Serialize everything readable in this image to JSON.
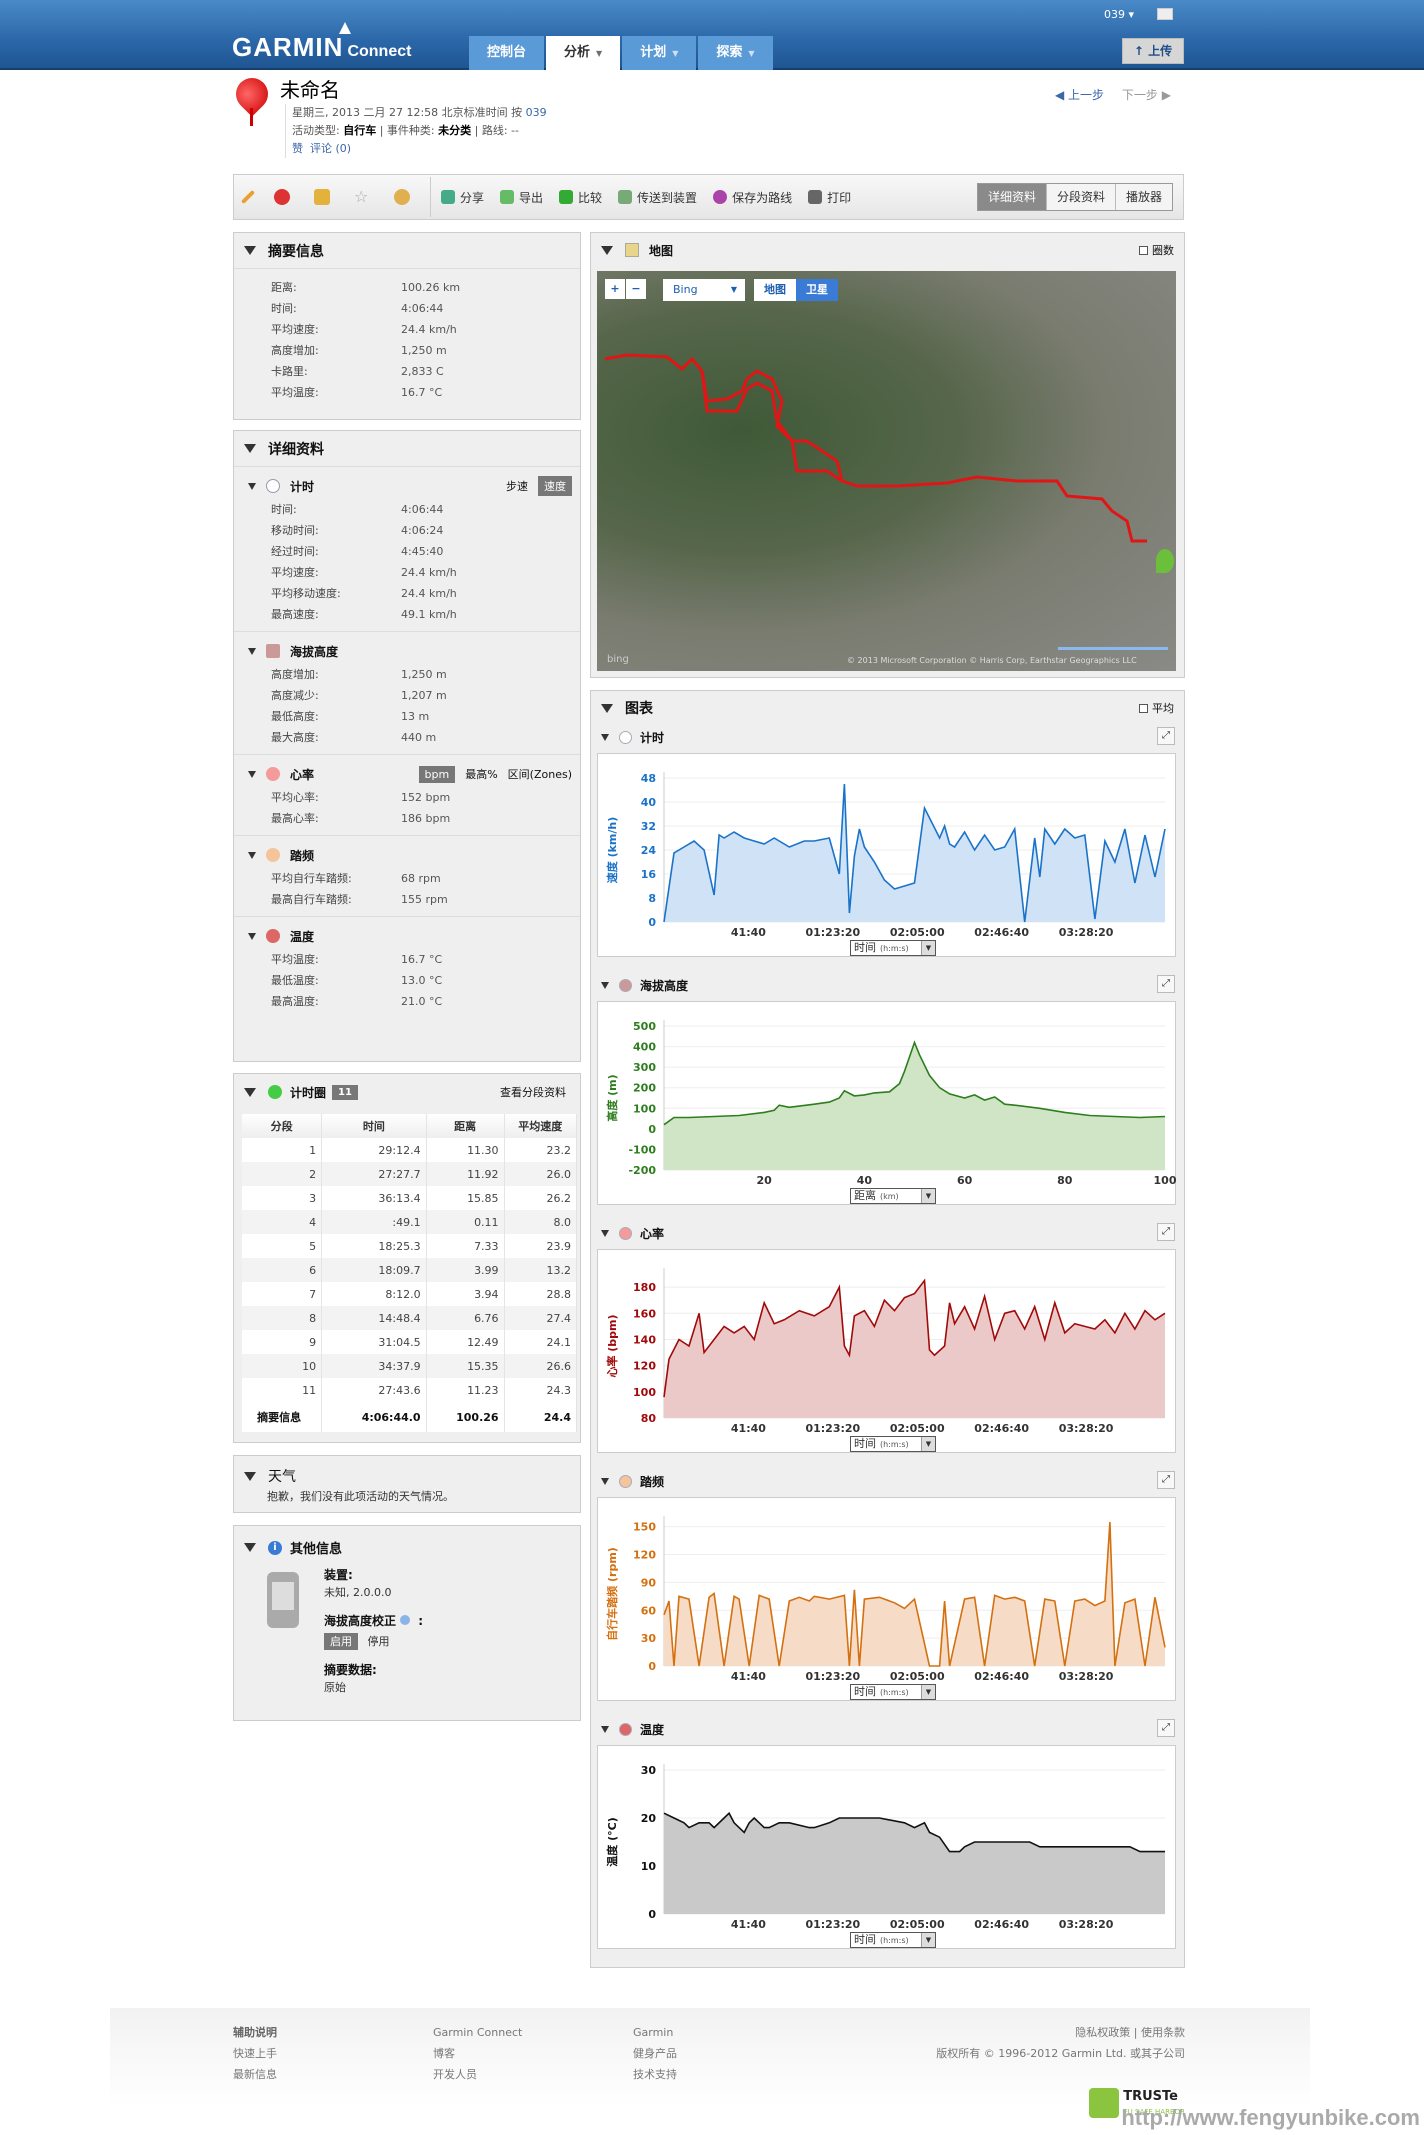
{
  "header": {
    "logo_main": "GARMIN",
    "logo_sub": "Connect",
    "nav": [
      {
        "label": "控制台",
        "dropdown": false,
        "active": false
      },
      {
        "label": "分析",
        "dropdown": true,
        "active": true
      },
      {
        "label": "计划",
        "dropdown": true,
        "active": false
      },
      {
        "label": "探索",
        "dropdown": true,
        "active": false
      }
    ],
    "user": "039 ▾",
    "upload_label": "上传"
  },
  "activity": {
    "title": "未命名",
    "datetime": "星期三, 2013 二月 27 12:58 北京标准时间 按",
    "owner": "039",
    "type_label": "活动类型:",
    "type_value": "自行车",
    "event_label": "| 事件种类:",
    "event_value": "未分类",
    "route_label": "| 路线: --",
    "like": "赞",
    "comment": "评论 (0)",
    "prev": "上一步",
    "next": "下一步"
  },
  "toolbar": {
    "icons": [
      "edit-icon",
      "delete-icon",
      "privacy-icon",
      "favorite-icon",
      "badge-icon"
    ],
    "buttons": [
      "分享",
      "导出",
      "比较",
      "传送到装置",
      "保存为路线",
      "打印"
    ],
    "views": [
      "详细资料",
      "分段资料",
      "播放器"
    ],
    "active_view": 0
  },
  "summary": {
    "title": "摘要信息",
    "rows": [
      {
        "k": "距离:",
        "v": "100.26 km"
      },
      {
        "k": "时间:",
        "v": "4:06:44"
      },
      {
        "k": "平均速度:",
        "v": "24.4 km/h"
      },
      {
        "k": "高度增加:",
        "v": "1,250 m"
      },
      {
        "k": "卡路里:",
        "v": "2,833 C"
      },
      {
        "k": "平均温度:",
        "v": "16.7 °C"
      }
    ]
  },
  "details": {
    "title": "详细资料",
    "timing": {
      "title": "计时",
      "opt1": "步速",
      "opt2": "速度",
      "rows": [
        {
          "k": "时间:",
          "v": "4:06:44"
        },
        {
          "k": "移动时间:",
          "v": "4:06:24"
        },
        {
          "k": "经过时间:",
          "v": "4:45:40"
        },
        {
          "k": "平均速度:",
          "v": "24.4 km/h"
        },
        {
          "k": "平均移动速度:",
          "v": "24.4 km/h"
        },
        {
          "k": "最高速度:",
          "v": "49.1 km/h"
        }
      ]
    },
    "elevation": {
      "title": "海拔高度",
      "rows": [
        {
          "k": "高度增加:",
          "v": "1,250 m"
        },
        {
          "k": "高度减少:",
          "v": "1,207 m"
        },
        {
          "k": "最低高度:",
          "v": "13 m"
        },
        {
          "k": "最大高度:",
          "v": "440 m"
        }
      ]
    },
    "heart": {
      "title": "心率",
      "opt1": "bpm",
      "opt2": "最高%",
      "opt3": "区间(Zones)",
      "rows": [
        {
          "k": "平均心率:",
          "v": "152 bpm"
        },
        {
          "k": "最高心率:",
          "v": "186 bpm"
        }
      ]
    },
    "cadence": {
      "title": "踏频",
      "rows": [
        {
          "k": "平均自行车踏频:",
          "v": "68 rpm"
        },
        {
          "k": "最高自行车踏频:",
          "v": "155 rpm"
        }
      ]
    },
    "temperature": {
      "title": "温度",
      "rows": [
        {
          "k": "平均温度:",
          "v": "16.7 °C"
        },
        {
          "k": "最低温度:",
          "v": "13.0 °C"
        },
        {
          "k": "最高温度:",
          "v": "21.0 °C"
        }
      ]
    }
  },
  "laps": {
    "title": "计时圈",
    "count": "11",
    "link": "查看分段资料",
    "headers": [
      "分段",
      "时间",
      "距离",
      "平均速度"
    ],
    "rows": [
      [
        "1",
        "29:12.4",
        "11.30",
        "23.2"
      ],
      [
        "2",
        "27:27.7",
        "11.92",
        "26.0"
      ],
      [
        "3",
        "36:13.4",
        "15.85",
        "26.2"
      ],
      [
        "4",
        ":49.1",
        "0.11",
        "8.0"
      ],
      [
        "5",
        "18:25.3",
        "7.33",
        "23.9"
      ],
      [
        "6",
        "18:09.7",
        "3.99",
        "13.2"
      ],
      [
        "7",
        "8:12.0",
        "3.94",
        "28.8"
      ],
      [
        "8",
        "14:48.4",
        "6.76",
        "27.4"
      ],
      [
        "9",
        "31:04.5",
        "12.49",
        "24.1"
      ],
      [
        "10",
        "34:37.9",
        "15.35",
        "26.6"
      ],
      [
        "11",
        "27:43.6",
        "11.23",
        "24.3"
      ]
    ],
    "total": [
      "摘要信息",
      "4:06:44.0",
      "100.26",
      "24.4"
    ]
  },
  "weather": {
    "title": "天气",
    "message": "抱歉，我们没有此项活动的天气情况。"
  },
  "other": {
    "title": "其他信息",
    "device_label": "装置:",
    "device_value": "未知, 2.0.0.0",
    "elev_corr_label": "海拔高度校正",
    "elev_corr_suffix": ":",
    "enable": "启用",
    "disable": "停用",
    "summary_label": "摘要数据:",
    "summary_value": "原始"
  },
  "map": {
    "title": "地图",
    "laps_checkbox": "圈数",
    "provider": "Bing",
    "mode_map": "地图",
    "mode_sat": "卫星",
    "copyright": "© 2013 Microsoft Corporation   © Harris Corp, Earthstar Geographics LLC",
    "bing": "bing",
    "scale_mi": "3 miles",
    "scale_km": "2 km"
  },
  "charts_panel": {
    "title": "图表",
    "avg_checkbox": "平均"
  },
  "chart_data": [
    {
      "type": "area",
      "title": "计时",
      "ylabel": "速度 (km/h)",
      "xlabel": "时间 (h:m:s)",
      "color": "#1a73c9",
      "fill": "#cfe2f6",
      "ylim": [
        0,
        48
      ],
      "yticks": [
        0,
        8,
        16,
        24,
        32,
        40,
        48
      ],
      "xticks": [
        "41:40",
        "01:23:20",
        "02:05:00",
        "02:46:40",
        "03:28:20"
      ],
      "x": [
        0,
        0.02,
        0.04,
        0.06,
        0.08,
        0.1,
        0.11,
        0.12,
        0.14,
        0.16,
        0.18,
        0.2,
        0.22,
        0.25,
        0.28,
        0.3,
        0.33,
        0.35,
        0.36,
        0.37,
        0.38,
        0.39,
        0.4,
        0.42,
        0.44,
        0.46,
        0.48,
        0.5,
        0.52,
        0.55,
        0.56,
        0.57,
        0.58,
        0.6,
        0.62,
        0.64,
        0.66,
        0.68,
        0.7,
        0.72,
        0.74,
        0.75,
        0.76,
        0.78,
        0.8,
        0.82,
        0.84,
        0.86,
        0.88,
        0.9,
        0.92,
        0.94,
        0.96,
        0.98,
        1.0
      ],
      "values": [
        0,
        23,
        25,
        27,
        24,
        9,
        29,
        28,
        30,
        28,
        27,
        26,
        28,
        25,
        27,
        27,
        28,
        16,
        46,
        3,
        22,
        31,
        25,
        20,
        14,
        11,
        12,
        13,
        38,
        28,
        32,
        26,
        25,
        30,
        24,
        29,
        24,
        25,
        31,
        0,
        28,
        15,
        31,
        26,
        31,
        28,
        29,
        1,
        27,
        20,
        31,
        13,
        29,
        15,
        31
      ]
    },
    {
      "type": "area",
      "title": "海拔高度",
      "ylabel": "高度 (m)",
      "xlabel": "距离 (km)",
      "color": "#2e7d1e",
      "fill": "#cfe5c6",
      "ylim": [
        -200,
        500
      ],
      "yticks": [
        -200,
        -100,
        0,
        100,
        200,
        300,
        400,
        500
      ],
      "xticks": [
        "20",
        "40",
        "60",
        "80",
        "100"
      ],
      "x": [
        0,
        2,
        5,
        10,
        15,
        20,
        22,
        23,
        25,
        30,
        33,
        35,
        36,
        38,
        40,
        42,
        45,
        47,
        48,
        50,
        51,
        53,
        55,
        57,
        60,
        62,
        64,
        66,
        68,
        70,
        75,
        80,
        85,
        90,
        95,
        100
      ],
      "values": [
        20,
        55,
        55,
        60,
        65,
        80,
        90,
        115,
        105,
        120,
        130,
        150,
        185,
        160,
        165,
        175,
        180,
        220,
        280,
        420,
        360,
        260,
        200,
        170,
        150,
        165,
        140,
        155,
        120,
        115,
        100,
        80,
        65,
        60,
        55,
        60
      ]
    },
    {
      "type": "area",
      "title": "心率",
      "ylabel": "心率 (bpm)",
      "xlabel": "时间 (h:m:s)",
      "color": "#a10a0a",
      "fill": "#ecc9c9",
      "ylim": [
        80,
        190
      ],
      "yticks": [
        80,
        100,
        120,
        140,
        160,
        180
      ],
      "xticks": [
        "41:40",
        "01:23:20",
        "02:05:00",
        "02:46:40",
        "03:28:20"
      ],
      "x": [
        0,
        0.01,
        0.03,
        0.05,
        0.07,
        0.08,
        0.1,
        0.12,
        0.14,
        0.16,
        0.18,
        0.2,
        0.22,
        0.24,
        0.27,
        0.3,
        0.33,
        0.35,
        0.36,
        0.37,
        0.38,
        0.4,
        0.42,
        0.44,
        0.46,
        0.48,
        0.5,
        0.52,
        0.53,
        0.54,
        0.56,
        0.57,
        0.58,
        0.6,
        0.62,
        0.64,
        0.66,
        0.68,
        0.7,
        0.72,
        0.74,
        0.76,
        0.78,
        0.8,
        0.82,
        0.84,
        0.86,
        0.88,
        0.9,
        0.92,
        0.94,
        0.96,
        0.98,
        1.0
      ],
      "values": [
        96,
        125,
        140,
        135,
        160,
        130,
        140,
        150,
        145,
        150,
        140,
        168,
        152,
        155,
        162,
        158,
        165,
        180,
        135,
        128,
        158,
        162,
        150,
        170,
        162,
        172,
        175,
        185,
        132,
        128,
        135,
        168,
        152,
        165,
        148,
        173,
        140,
        160,
        162,
        148,
        165,
        140,
        168,
        145,
        152,
        150,
        148,
        155,
        145,
        160,
        148,
        162,
        155,
        160
      ]
    },
    {
      "type": "area",
      "title": "踏频",
      "ylabel": "自行车踏频 (rpm)",
      "xlabel": "时间 (h:m:s)",
      "color": "#d4700f",
      "fill": "#f6dcc6",
      "ylim": [
        0,
        155
      ],
      "yticks": [
        0,
        30,
        60,
        90,
        120,
        150
      ],
      "xticks": [
        "41:40",
        "01:23:20",
        "02:05:00",
        "02:46:40",
        "03:28:20"
      ],
      "x": [
        0,
        0.01,
        0.02,
        0.03,
        0.05,
        0.07,
        0.09,
        0.1,
        0.12,
        0.14,
        0.15,
        0.17,
        0.19,
        0.21,
        0.23,
        0.25,
        0.27,
        0.29,
        0.3,
        0.33,
        0.36,
        0.37,
        0.38,
        0.39,
        0.4,
        0.43,
        0.46,
        0.48,
        0.5,
        0.53,
        0.55,
        0.56,
        0.57,
        0.6,
        0.62,
        0.64,
        0.66,
        0.68,
        0.7,
        0.72,
        0.74,
        0.76,
        0.78,
        0.8,
        0.82,
        0.84,
        0.86,
        0.88,
        0.89,
        0.9,
        0.92,
        0.94,
        0.96,
        0.98,
        1.0
      ],
      "values": [
        55,
        70,
        0,
        75,
        72,
        0,
        74,
        78,
        0,
        75,
        72,
        0,
        76,
        72,
        0,
        70,
        74,
        70,
        75,
        72,
        76,
        0,
        82,
        0,
        72,
        74,
        68,
        62,
        72,
        0,
        0,
        70,
        0,
        72,
        74,
        0,
        76,
        72,
        74,
        70,
        0,
        72,
        70,
        0,
        70,
        72,
        65,
        70,
        155,
        0,
        68,
        72,
        0,
        74,
        20
      ]
    },
    {
      "type": "area",
      "title": "温度",
      "ylabel": "温度 (°C)",
      "xlabel": "时间 (h:m:s)",
      "color": "#111111",
      "fill": "#c9c9c9",
      "ylim": [
        0,
        30
      ],
      "yticks": [
        0,
        10,
        20,
        30
      ],
      "xticks": [
        "41:40",
        "01:23:20",
        "02:05:00",
        "02:46:40",
        "03:28:20"
      ],
      "x": [
        0,
        0.02,
        0.04,
        0.05,
        0.07,
        0.09,
        0.1,
        0.12,
        0.13,
        0.14,
        0.16,
        0.17,
        0.18,
        0.2,
        0.21,
        0.23,
        0.25,
        0.29,
        0.3,
        0.33,
        0.35,
        0.36,
        0.43,
        0.48,
        0.5,
        0.52,
        0.53,
        0.55,
        0.57,
        0.59,
        0.6,
        0.62,
        0.73,
        0.75,
        0.93,
        0.95,
        1.0
      ],
      "values": [
        21,
        20,
        19,
        18,
        19,
        19,
        18,
        20,
        21,
        19,
        17,
        19,
        20,
        18,
        18,
        19,
        19,
        18,
        18,
        19,
        20,
        20,
        20,
        19,
        18,
        19,
        17,
        16,
        13,
        13,
        14,
        15,
        15,
        14,
        14,
        13,
        13
      ]
    }
  ],
  "footer": {
    "col1": {
      "title": "辅助说明",
      "links": [
        "快速上手",
        "最新信息"
      ]
    },
    "col2": {
      "title": "Garmin Connect",
      "links": [
        "博客",
        "开发人员"
      ]
    },
    "col3": {
      "title": "Garmin",
      "links": [
        "健身产品",
        "技术支持"
      ]
    },
    "legal": "隐私权政策 | 使用条款",
    "copyright": "版权所有 © 1996-2012 Garmin Ltd. 或其子公司",
    "truste": "TRUSTe",
    "truste_sub": "EU SAFE HARBOR",
    "watermark": "http://www.fengyunbike.com"
  }
}
